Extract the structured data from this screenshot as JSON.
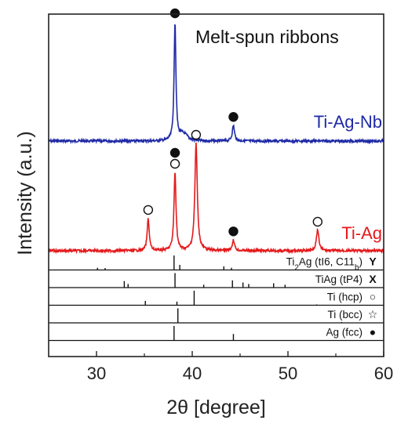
{
  "chart_data": {
    "type": "line",
    "title": "Melt-spun ribbons",
    "xlabel": "2θ [degree]",
    "ylabel": "Intensity (a.u.)",
    "xlim": [
      25,
      60
    ],
    "xticks": [
      30,
      40,
      50,
      60
    ],
    "tick_labels": [
      "30",
      "40",
      "50",
      "60"
    ],
    "series": [
      {
        "name": "Ti-Ag-Nb",
        "color": "#1f2aa6",
        "baseline": 0,
        "peaks": [
          {
            "x": 38.2,
            "height": 100,
            "width": 0.18
          },
          {
            "x": 38.9,
            "height": 4,
            "width": 0.5
          },
          {
            "x": 39.3,
            "height": 3.5,
            "width": 0.6
          },
          {
            "x": 44.3,
            "height": 13,
            "width": 0.22
          }
        ],
        "markers": [
          {
            "x": 38.2,
            "symbol": "filled-circle"
          },
          {
            "x": 44.3,
            "symbol": "filled-circle"
          }
        ]
      },
      {
        "name": "Ti-Ag",
        "color": "#e41a1c",
        "baseline": 0,
        "peaks": [
          {
            "x": 35.4,
            "height": 30,
            "width": 0.2
          },
          {
            "x": 38.2,
            "height": 73,
            "width": 0.2
          },
          {
            "x": 40.4,
            "height": 100,
            "width": 0.24
          },
          {
            "x": 44.3,
            "height": 10,
            "width": 0.22
          },
          {
            "x": 53.1,
            "height": 19,
            "width": 0.25
          }
        ],
        "markers": [
          {
            "x": 35.4,
            "symbol": "open-circle"
          },
          {
            "x": 38.2,
            "symbol": "open-circle"
          },
          {
            "x": 38.2,
            "symbol": "filled-circle"
          },
          {
            "x": 40.4,
            "symbol": "open-circle"
          },
          {
            "x": 44.3,
            "symbol": "filled-circle"
          },
          {
            "x": 53.1,
            "symbol": "open-circle"
          }
        ]
      }
    ],
    "reference_patterns": [
      {
        "label": "Ti",
        "sub": "2",
        "label_rest": "Ag (tI6, C11",
        "label_sub2": "b",
        "label_end": ")",
        "marker": "Y",
        "lines": [
          {
            "x": 30.1,
            "rel": 0.15
          },
          {
            "x": 30.9,
            "rel": 0.12
          },
          {
            "x": 38.1,
            "rel": 1.0
          },
          {
            "x": 38.7,
            "rel": 0.35
          },
          {
            "x": 43.3,
            "rel": 0.25
          },
          {
            "x": 44.1,
            "rel": 0.15
          }
        ]
      },
      {
        "label": "TiAg (tP4)",
        "marker": "X",
        "lines": [
          {
            "x": 32.9,
            "rel": 0.45
          },
          {
            "x": 33.3,
            "rel": 0.25
          },
          {
            "x": 38.2,
            "rel": 1.0
          },
          {
            "x": 41.2,
            "rel": 0.2
          },
          {
            "x": 44.2,
            "rel": 0.5
          },
          {
            "x": 45.3,
            "rel": 0.35
          },
          {
            "x": 45.9,
            "rel": 0.25
          },
          {
            "x": 48.5,
            "rel": 0.3
          },
          {
            "x": 49.7,
            "rel": 0.2
          }
        ]
      },
      {
        "label": "Ti (hcp)",
        "marker": "○",
        "lines": [
          {
            "x": 35.1,
            "rel": 0.3
          },
          {
            "x": 38.4,
            "rel": 0.25
          },
          {
            "x": 40.2,
            "rel": 1.0
          },
          {
            "x": 53.0,
            "rel": 0.15
          }
        ]
      },
      {
        "label": "Ti (bcc)",
        "marker": "☆",
        "lines": [
          {
            "x": 38.5,
            "rel": 1.0
          },
          {
            "x": 55.6,
            "rel": 0.15
          }
        ]
      },
      {
        "label": "Ag (fcc)",
        "marker": "●",
        "lines": [
          {
            "x": 38.1,
            "rel": 1.0
          },
          {
            "x": 44.3,
            "rel": 0.45
          }
        ]
      }
    ]
  }
}
